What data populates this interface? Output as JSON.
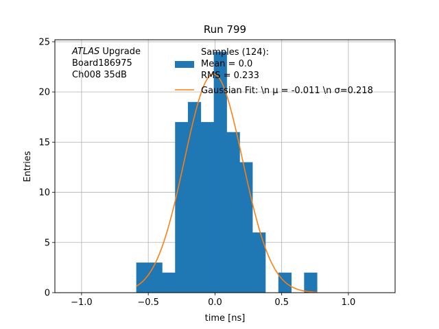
{
  "chart_data": {
    "type": "bar",
    "title": "Run 799",
    "xlabel": "time [ns]",
    "ylabel": "Entries",
    "xlim": [
      -1.2,
      1.35
    ],
    "ylim": [
      0,
      25.2
    ],
    "xticks": [
      -1.0,
      -0.5,
      0.0,
      0.5,
      1.0
    ],
    "xtick_labels": [
      "−1.0",
      "−0.5",
      "0.0",
      "0.5",
      "1.0"
    ],
    "yticks": [
      0,
      5,
      10,
      15,
      20,
      25
    ],
    "ytick_labels": [
      "0",
      "5",
      "10",
      "15",
      "20",
      "25"
    ],
    "grid": true,
    "bin_width": 0.0967,
    "bins": [
      {
        "left": -0.59,
        "value": 3
      },
      {
        "left": -0.493,
        "value": 3
      },
      {
        "left": -0.396,
        "value": 2
      },
      {
        "left": -0.299,
        "value": 17
      },
      {
        "left": -0.203,
        "value": 19
      },
      {
        "left": -0.106,
        "value": 17
      },
      {
        "left": -0.009,
        "value": 24
      },
      {
        "left": 0.088,
        "value": 16
      },
      {
        "left": 0.184,
        "value": 13
      },
      {
        "left": 0.281,
        "value": 6
      },
      {
        "left": 0.378,
        "value": 0
      },
      {
        "left": 0.475,
        "value": 2
      },
      {
        "left": 0.572,
        "value": 0
      },
      {
        "left": 0.668,
        "value": 2
      }
    ],
    "fit": {
      "name": "Gaussian Fit: \\n μ = -0.011 \\n σ=0.218",
      "mu": -0.011,
      "sigma": 0.218,
      "amplitude": 21.8,
      "x_range": [
        -0.59,
        0.765
      ]
    },
    "legend": {
      "placement": "top-right",
      "samples_line1": "Samples (124):",
      "samples_line2": " Mean = 0.0",
      "samples_line3": " RMS = 0.233",
      "fit_label": "Gaussian Fit: \\n μ = -0.011 \\n σ=0.218"
    },
    "annotation": {
      "atlas": "ATLAS",
      "upgrade": " Upgrade",
      "board": " Board186975",
      "channel": " Ch008 35dB"
    },
    "colors": {
      "hist": "#1f77b4",
      "fit": "#ff7f0e",
      "grid": "#b0b0b0"
    }
  }
}
